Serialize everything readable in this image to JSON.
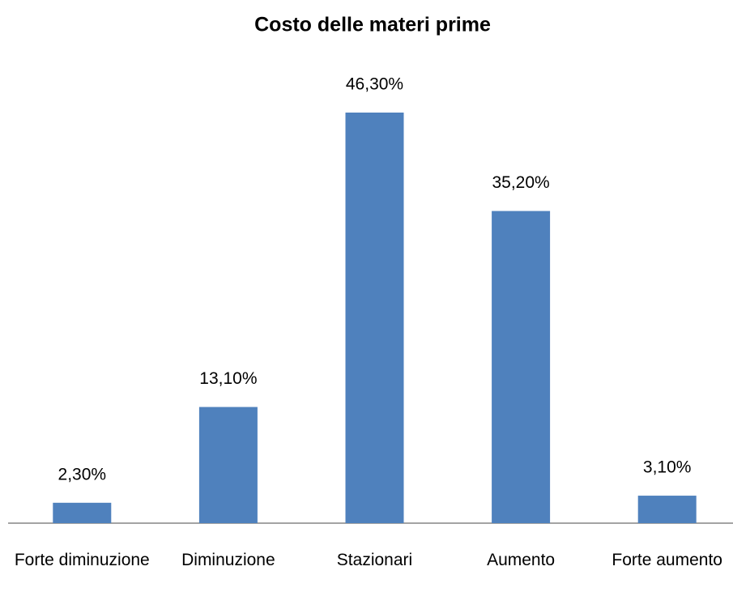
{
  "chart_data": {
    "type": "bar",
    "title": "Costo delle materi prime",
    "categories": [
      "Forte diminuzione",
      "Diminuzione",
      "Stazionari",
      "Aumento",
      "Forte aumento"
    ],
    "values": [
      2.3,
      13.1,
      46.3,
      35.2,
      3.1
    ],
    "value_labels": [
      "2,30%",
      "13,10%",
      "46,30%",
      "35,20%",
      "3,10%"
    ],
    "color": "#4f81bd"
  }
}
